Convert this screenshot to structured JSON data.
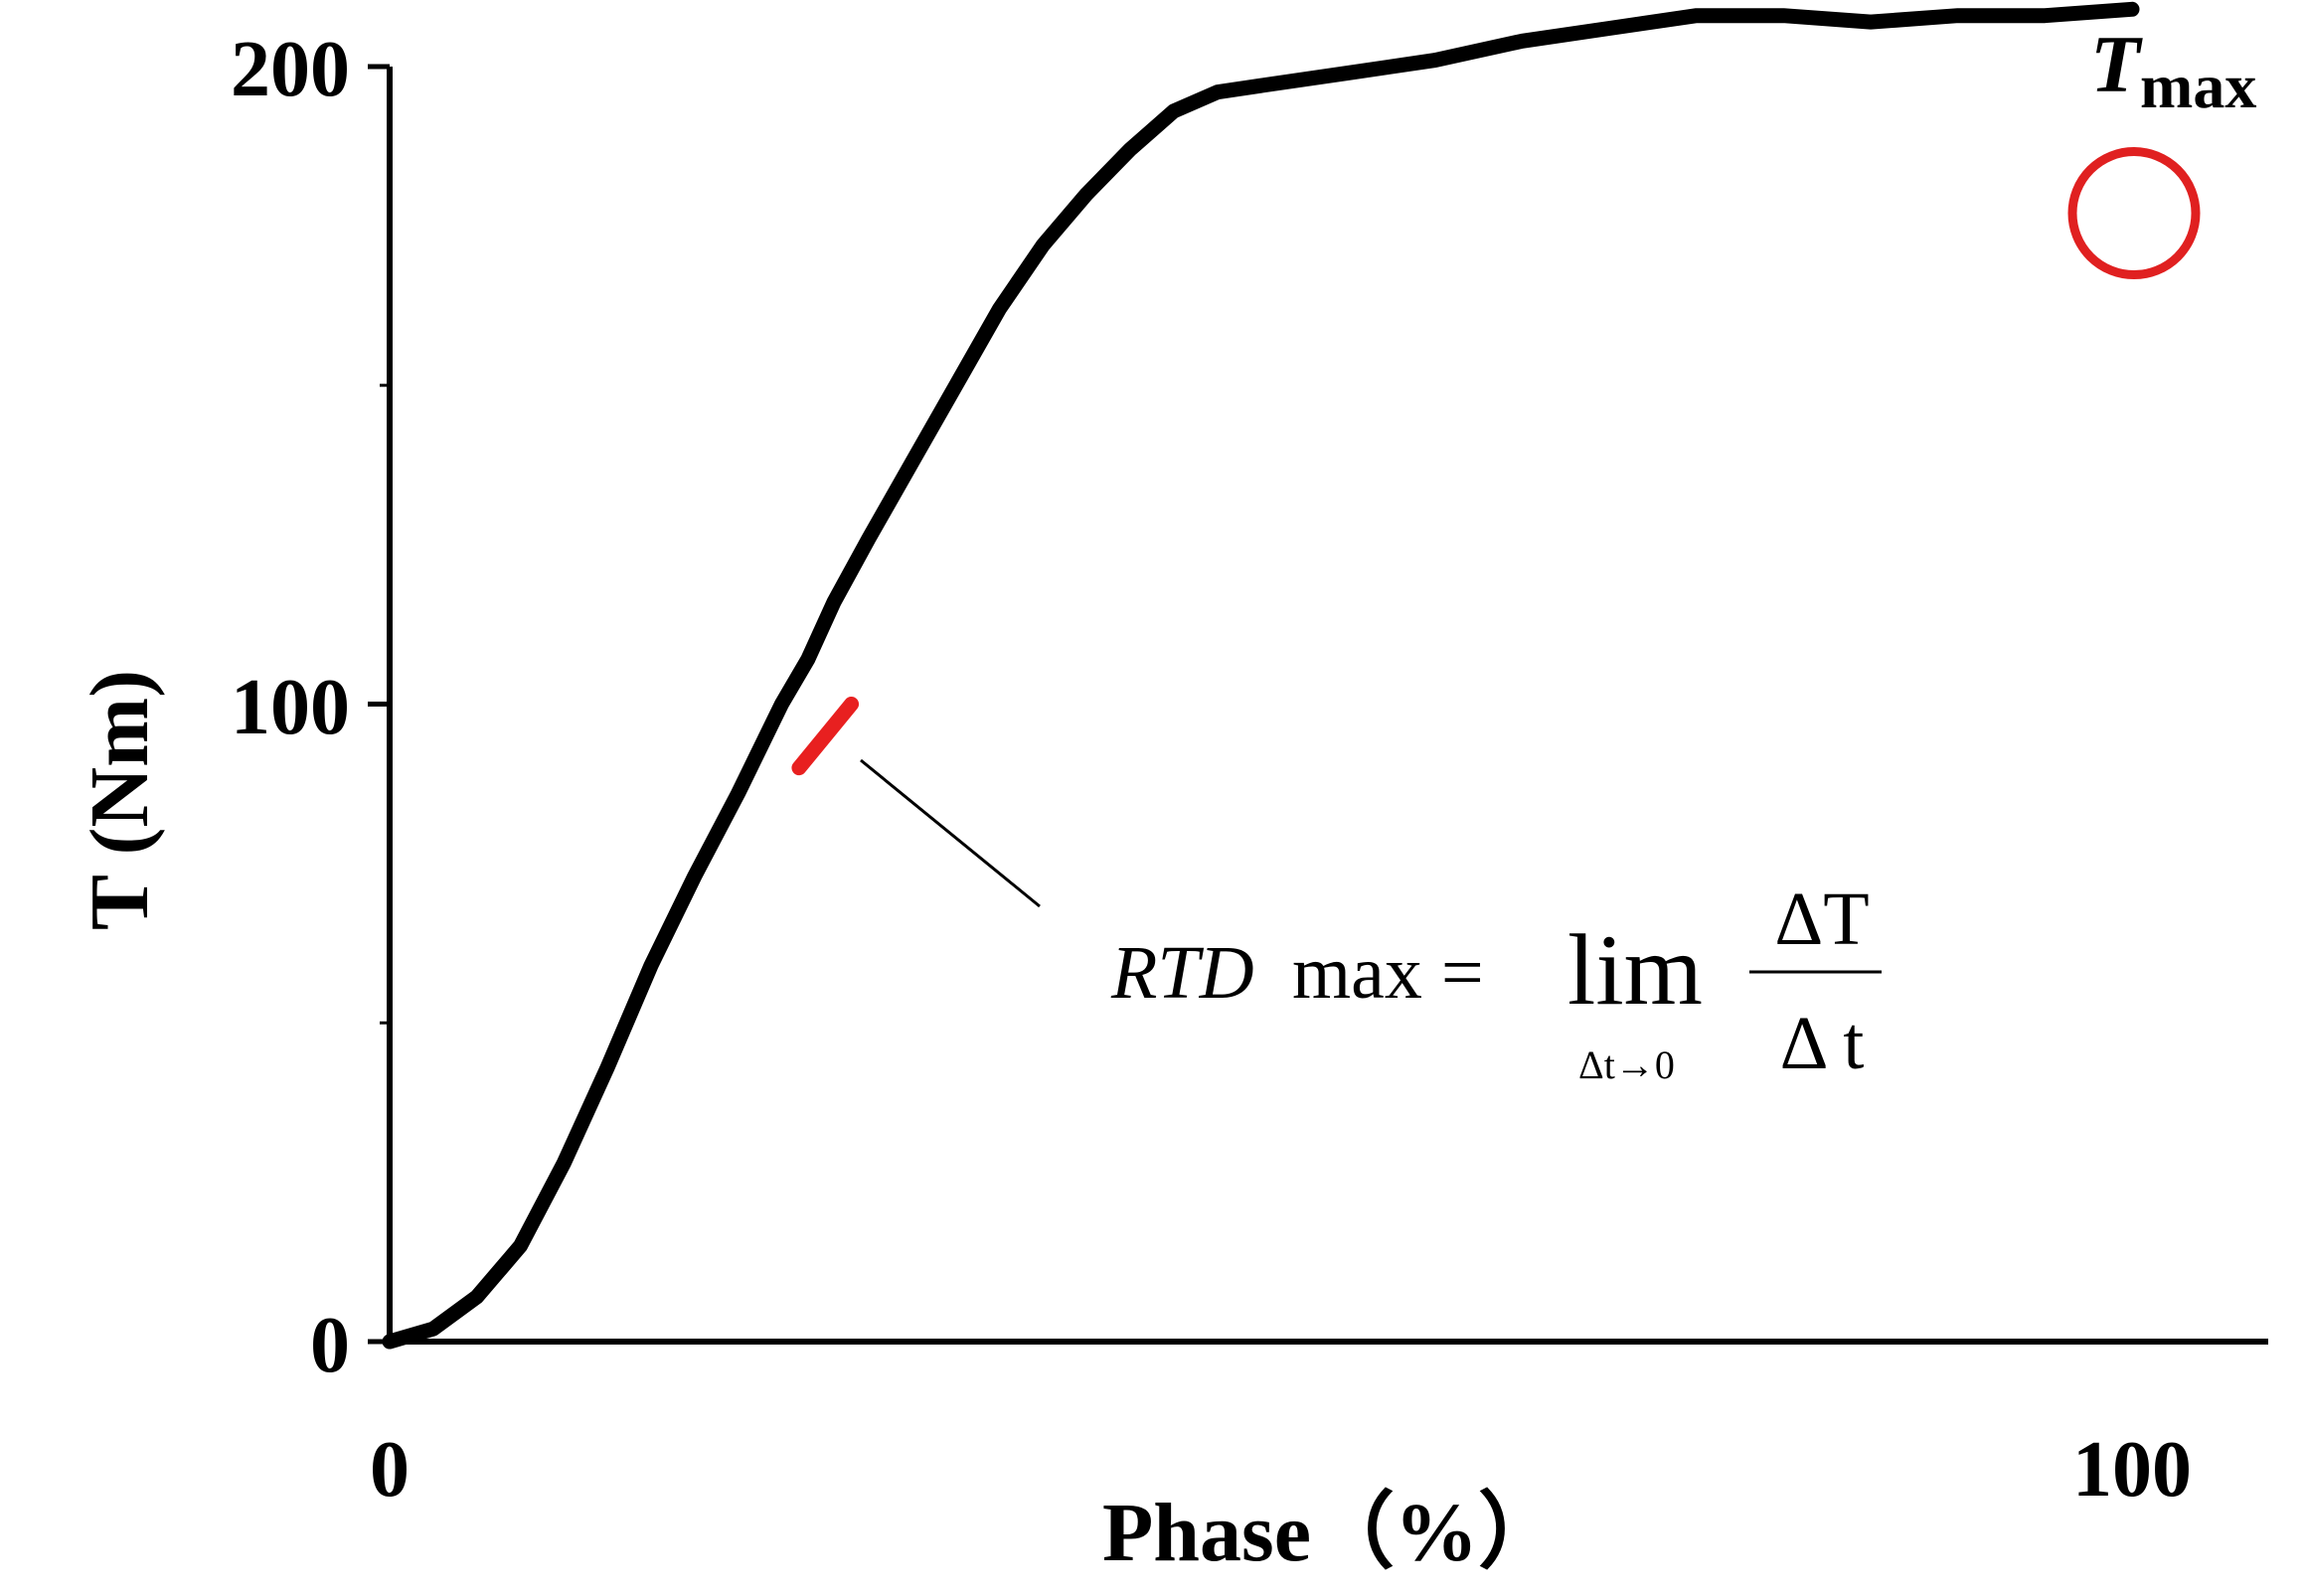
{
  "chart_data": {
    "type": "line",
    "title": "",
    "xlabel": "Phase（%）",
    "ylabel": "T (Nm)",
    "xlim": [
      0,
      100
    ],
    "ylim": [
      0,
      200
    ],
    "x_ticks": [
      "0",
      "100"
    ],
    "y_ticks": [
      "0",
      "100",
      "200"
    ],
    "grid": false,
    "legend": "none",
    "series": [
      {
        "color": "#000000",
        "x": [
          0,
          2.5,
          5,
          7.5,
          10,
          12.5,
          15,
          17.5,
          20,
          22.5,
          24,
          25.5,
          27.5,
          30,
          32.5,
          35,
          37.5,
          40,
          42.5,
          45,
          47.5,
          50,
          55,
          60,
          65,
          70,
          75,
          80,
          85,
          90,
          95,
          100
        ],
        "y": [
          0,
          2,
          7,
          15,
          28,
          43,
          59,
          73,
          86,
          100,
          107,
          116,
          126,
          138,
          150,
          162,
          172,
          180,
          187,
          193,
          196,
          197,
          199,
          201,
          204,
          206,
          208,
          208,
          207,
          208,
          208,
          209
        ]
      }
    ],
    "highlight_segment": {
      "color": "#e82020",
      "x": [
        23.5,
        26.5
      ],
      "y": [
        90,
        100
      ]
    },
    "annotations": [
      {
        "type": "circle",
        "label": "T",
        "label_sub": "max",
        "x": 100,
        "y": 177,
        "color": "#e02020"
      },
      {
        "type": "formula",
        "lhs_italic": "RTD",
        "lhs_rest": "max =",
        "lim": "lim",
        "lim_sub": "Δt→0",
        "numerator": "ΔT",
        "denominator": "Δ t",
        "points_to": {
          "x": 26,
          "y": 90
        }
      }
    ]
  }
}
